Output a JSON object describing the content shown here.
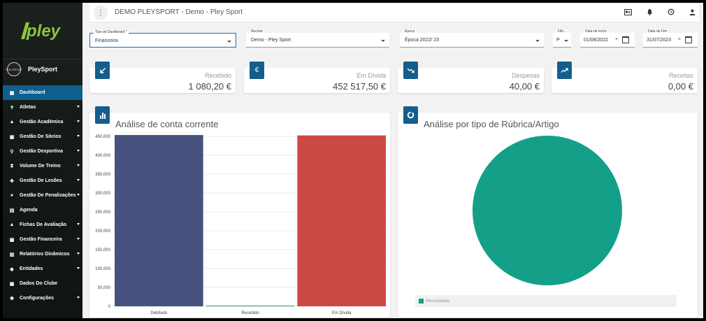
{
  "brand": {
    "logo_text": "pley"
  },
  "club": {
    "name": "PleySport",
    "avatar_text": "PLEYSPORT"
  },
  "nav": [
    {
      "label": "Dashboard",
      "icon": "dashboard-icon",
      "active": true,
      "caret": false
    },
    {
      "label": "Atletas",
      "icon": "athlete-icon",
      "caret": true
    },
    {
      "label": "Gestão Académica",
      "icon": "graduation-cap-icon",
      "caret": true
    },
    {
      "label": "Gestão De Sócios",
      "icon": "member-card-icon",
      "caret": true
    },
    {
      "label": "Gestão Desportiva",
      "icon": "whistle-icon",
      "caret": true
    },
    {
      "label": "Volume De Treino",
      "icon": "hourglass-icon",
      "caret": true
    },
    {
      "label": "Gestão De Lesões",
      "icon": "medical-icon",
      "caret": true
    },
    {
      "label": "Gestão De Penalizações",
      "icon": "penalty-icon",
      "caret": true
    },
    {
      "label": "Agenda",
      "icon": "calendar-icon",
      "caret": false
    },
    {
      "label": "Fichas De Avaliação",
      "icon": "evaluation-icon",
      "caret": true
    },
    {
      "label": "Gestão Financeira",
      "icon": "finance-icon",
      "caret": true
    },
    {
      "label": "Relatórios Dinâmicos",
      "icon": "report-icon",
      "caret": true
    },
    {
      "label": "Entidades",
      "icon": "people-icon",
      "caret": true
    },
    {
      "label": "Dados Do Clube",
      "icon": "club-data-icon",
      "caret": false
    },
    {
      "label": "Configurações",
      "icon": "gear-icon",
      "caret": true
    }
  ],
  "header": {
    "title": "DEMO PLEYSPORT - Demo - Pley Sport"
  },
  "filters": {
    "tipo": {
      "label": "Tipo de Dashboard *",
      "value": "Financeira"
    },
    "recinto": {
      "label": "Recinto",
      "value": "Demo - Pley Sport"
    },
    "epoca": {
      "label": "Época",
      "value": "Época 2022/ 23"
    },
    "filtro": {
      "label": "Filtr...",
      "value": "P"
    },
    "data_inicio": {
      "label": "Data de Início",
      "value": "01/08/2022"
    },
    "data_fim": {
      "label": "Data de Fim",
      "value": "31/07/2023"
    },
    "clear_symbol": "×"
  },
  "kpis": [
    {
      "label": "Recebido",
      "value": "1 080,20 €",
      "icon": "arrow-down-left-icon"
    },
    {
      "label": "Em Dívida",
      "value": "452 517,50 €",
      "icon": "euro-icon"
    },
    {
      "label": "Despesas",
      "value": "40,00 €",
      "icon": "trend-down-icon"
    },
    {
      "label": "Receitas",
      "value": "0,00 €",
      "icon": "trend-up-icon"
    }
  ],
  "panels": {
    "conta_corrente": {
      "title": "Análise de conta corrente",
      "icon": "bar-chart-icon"
    },
    "rubrica": {
      "title": "Análise por tipo de Rúbrica/Artigo",
      "icon": "donut-icon"
    }
  },
  "chart_data": [
    {
      "type": "bar",
      "categories": [
        "Debitado",
        "Recebido",
        "Em Dívida"
      ],
      "values": [
        453597.7,
        1080.2,
        452517.5
      ],
      "colors": [
        "#47527f",
        "#2e9c4c",
        "#cc4a45"
      ],
      "ylim": [
        0,
        450000
      ],
      "yticks": [
        0,
        50000,
        100000,
        150000,
        200000,
        250000,
        300000,
        350000,
        400000,
        450000
      ],
      "ytick_labels": [
        "0",
        "50,000",
        "100,000",
        "150,000",
        "200,000",
        "250,000",
        "300,000",
        "350,000",
        "400,000",
        "450,000"
      ],
      "grid": true
    },
    {
      "type": "pie",
      "labels": [
        "Mensalidade"
      ],
      "values": [
        100
      ],
      "colors": [
        "#14a088"
      ],
      "legend": "bottom"
    }
  ],
  "colors": {
    "accent": "#155d8c",
    "active_nav": "#0f5f8e",
    "logo_green": "#8cc63f"
  }
}
